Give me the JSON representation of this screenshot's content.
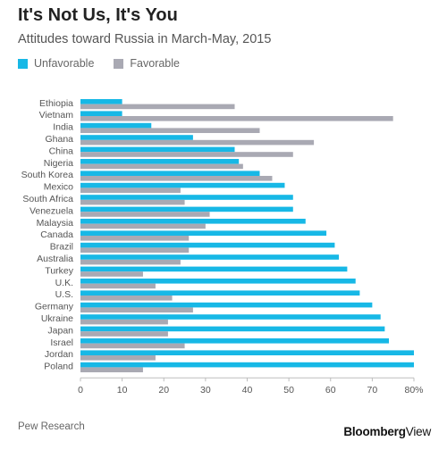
{
  "title": "It's Not Us, It's You",
  "subtitle": "Attitudes toward Russia in March-May, 2015",
  "source": "Pew Research",
  "brand": {
    "name": "Bloomberg",
    "suffix": "View"
  },
  "colors": {
    "unfavorable": "#17b8e6",
    "favorable": "#a9a9b3",
    "axis": "#bdbdbd",
    "text": "#555555"
  },
  "chart_data": {
    "type": "bar",
    "orientation": "horizontal",
    "categories": [
      "Ethiopia",
      "Vietnam",
      "India",
      "Ghana",
      "China",
      "Nigeria",
      "South Korea",
      "Mexico",
      "South Africa",
      "Venezuela",
      "Malaysia",
      "Canada",
      "Brazil",
      "Australia",
      "Turkey",
      "U.K.",
      "U.S.",
      "Germany",
      "Ukraine",
      "Japan",
      "Israel",
      "Jordan",
      "Poland"
    ],
    "series": [
      {
        "name": "Unfavorable",
        "color": "#17b8e6",
        "values": [
          10,
          10,
          17,
          27,
          37,
          38,
          43,
          49,
          51,
          51,
          54,
          59,
          61,
          62,
          64,
          66,
          67,
          70,
          72,
          73,
          74,
          80,
          80
        ]
      },
      {
        "name": "Favorable",
        "color": "#a9a9b3",
        "values": [
          37,
          75,
          43,
          56,
          51,
          39,
          46,
          24,
          25,
          31,
          30,
          26,
          26,
          24,
          15,
          18,
          22,
          27,
          21,
          21,
          25,
          18,
          15
        ]
      }
    ],
    "x_ticks": [
      "0",
      "10",
      "20",
      "30",
      "40",
      "50",
      "60",
      "70",
      "80%"
    ],
    "xlim": [
      0,
      80
    ],
    "grid": false,
    "legend": "top-left"
  }
}
